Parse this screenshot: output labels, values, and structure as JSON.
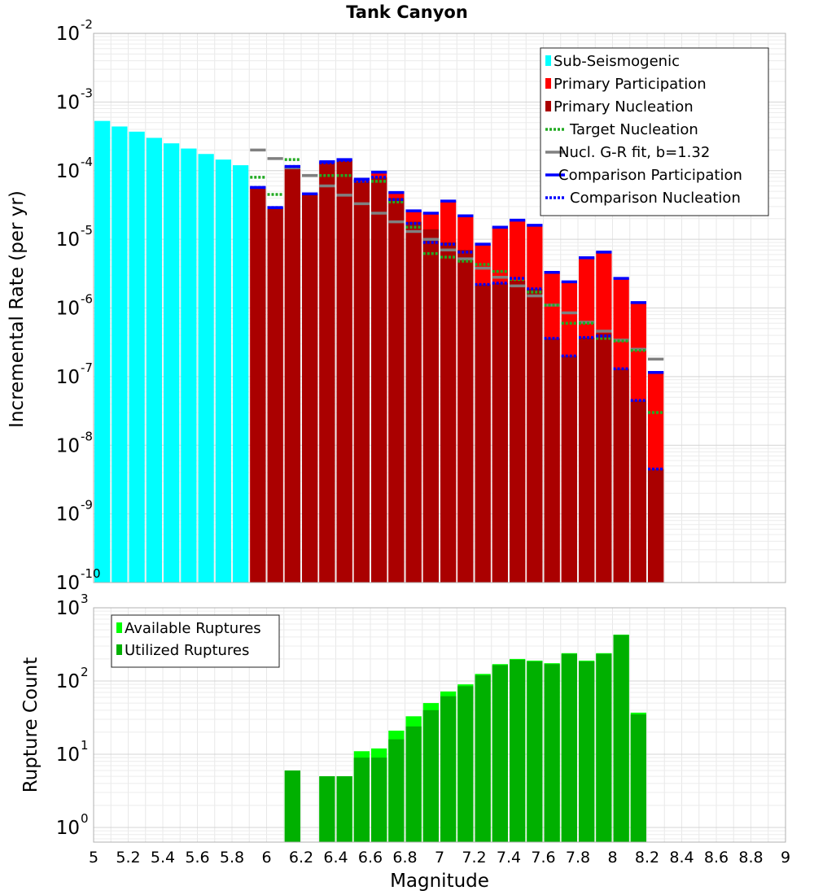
{
  "colors": {
    "sub_seismogenic": "#00FFFF",
    "primary_participation": "#FF0000",
    "primary_nucleation": "#AA0000",
    "target_nucleation": "#22AA22",
    "gr_fit": "#808080",
    "comparison": "#0000FF",
    "available": "#00FF00",
    "utilized": "#00B000"
  },
  "chart_data": [
    {
      "type": "bar",
      "title": "Tank Canyon",
      "ylabel": "Incremental Rate (per yr)",
      "xlabel": "Magnitude",
      "xlim": [
        5,
        9
      ],
      "ylim_exp": [
        -10,
        -2
      ],
      "ytick_labels": [
        {
          "base": "10",
          "exp": "-2"
        },
        {
          "base": "10",
          "exp": "-3"
        },
        {
          "base": "10",
          "exp": "-4"
        },
        {
          "base": "10",
          "exp": "-5"
        },
        {
          "base": "10",
          "exp": "-6"
        },
        {
          "base": "10",
          "exp": "-7"
        },
        {
          "base": "10",
          "exp": "-8"
        },
        {
          "base": "10",
          "exp": "-9"
        },
        {
          "base": "10",
          "exp": "-10"
        }
      ],
      "legend": [
        {
          "label": "Sub-Seismogenic",
          "style": "box",
          "color": "#00FFFF"
        },
        {
          "label": "Primary Participation",
          "style": "box",
          "color": "#FF0000"
        },
        {
          "label": "Primary Nucleation",
          "style": "box",
          "color": "#AA0000"
        },
        {
          "label": "Target Nucleation",
          "style": "dotted",
          "color": "#22AA22"
        },
        {
          "label": "Nucl. G-R fit, b=1.32",
          "style": "solid",
          "color": "#808080"
        },
        {
          "label": "Comparison Participation",
          "style": "solid",
          "color": "#0000FF"
        },
        {
          "label": "Comparison Nucleation",
          "style": "dotted",
          "color": "#0000FF"
        }
      ],
      "sub_seismogenic": {
        "x": [
          5.0,
          5.1,
          5.2,
          5.3,
          5.4,
          5.5,
          5.6,
          5.7,
          5.8
        ],
        "values": [
          0.00053,
          0.00044,
          0.00037,
          0.0003,
          0.00025,
          0.00021,
          0.000175,
          0.000145,
          0.00012
        ]
      },
      "primary": {
        "x": [
          5.9,
          6.0,
          6.1,
          6.2,
          6.3,
          6.4,
          6.5,
          6.6,
          6.7,
          6.8,
          6.9,
          7.0,
          7.1,
          7.2,
          7.3,
          7.4,
          7.5,
          7.6,
          7.7,
          7.8,
          7.9,
          8.0,
          8.1,
          8.2
        ],
        "participation": [
          5.7e-05,
          2.9e-05,
          0.000115,
          4.6e-05,
          0.000135,
          0.000145,
          7.5e-05,
          9.5e-05,
          4.8e-05,
          2.6e-05,
          2.4e-05,
          3.6e-05,
          2.2e-05,
          8.5e-06,
          1.5e-05,
          1.9e-05,
          1.6e-05,
          3.3e-06,
          2.4e-06,
          5.4e-06,
          6.5e-06,
          2.7e-06,
          1.2e-06,
          1.15e-07
        ],
        "nucleation": [
          5.7e-05,
          2.9e-05,
          0.000115,
          4.6e-05,
          0.00013,
          0.00014,
          7e-05,
          8e-05,
          4e-05,
          1.8e-05,
          1.4e-05,
          9e-06,
          7e-06,
          2.2e-06,
          2.3e-06,
          2.5e-06,
          1.9e-06,
          3.6e-07,
          2e-07,
          3.7e-07,
          4.3e-07,
          1.3e-07,
          4.5e-08,
          4.5e-09
        ],
        "target_nucleation": [
          8e-05,
          4.5e-05,
          0.000145,
          null,
          8.5e-05,
          8.5e-05,
          7e-05,
          7e-05,
          3.5e-05,
          1.5e-05,
          6.2e-06,
          5.5e-06,
          4.8e-06,
          4.3e-06,
          3.4e-06,
          2.6e-06,
          1.7e-06,
          1.1e-06,
          6e-07,
          6e-07,
          3.6e-07,
          3.3e-07,
          2.4e-07,
          3e-08
        ],
        "gr_fit": [
          0.0002,
          0.00015,
          0.00011,
          8.5e-05,
          6e-05,
          4.4e-05,
          3.3e-05,
          2.4e-05,
          1.8e-05,
          1.3e-05,
          1e-05,
          7e-06,
          5.2e-06,
          3.8e-06,
          2.8e-06,
          2.1e-06,
          1.5e-06,
          1.1e-06,
          8.5e-07,
          6.2e-07,
          4.6e-07,
          3.4e-07,
          2.5e-07,
          1.8e-07
        ],
        "comparison_participation": [
          5.7e-05,
          2.9e-05,
          0.000115,
          4.6e-05,
          0.000135,
          0.000145,
          7.5e-05,
          9.5e-05,
          4.8e-05,
          2.6e-05,
          2.4e-05,
          3.6e-05,
          2.2e-05,
          8.5e-06,
          1.5e-05,
          1.9e-05,
          1.6e-05,
          3.3e-06,
          2.4e-06,
          5.4e-06,
          6.5e-06,
          2.7e-06,
          1.2e-06,
          1.15e-07
        ],
        "comparison_nucleation": [
          5.7e-05,
          2.9e-05,
          0.000115,
          4.6e-05,
          0.00013,
          0.00014,
          7e-05,
          8e-05,
          3.8e-05,
          1.7e-05,
          9e-06,
          8.5e-06,
          6.5e-06,
          2.2e-06,
          2.3e-06,
          2.7e-06,
          1.9e-06,
          3.6e-07,
          2e-07,
          3.7e-07,
          3.9e-07,
          1.3e-07,
          4.5e-08,
          4.5e-09
        ]
      }
    },
    {
      "type": "bar",
      "ylabel": "Rupture Count",
      "xlabel": "Magnitude",
      "xlim": [
        5,
        9
      ],
      "ylim_exp": [
        0,
        3
      ],
      "ytick_labels": [
        {
          "base": "10",
          "exp": "3"
        },
        {
          "base": "10",
          "exp": "2"
        },
        {
          "base": "10",
          "exp": "1"
        },
        {
          "base": "10",
          "exp": "0"
        }
      ],
      "xtick_labels": [
        "5",
        "5.2",
        "5.4",
        "5.6",
        "5.8",
        "6",
        "6.2",
        "6.4",
        "6.6",
        "6.8",
        "7",
        "7.2",
        "7.4",
        "7.6",
        "7.8",
        "8",
        "8.2",
        "8.4",
        "8.6",
        "8.8",
        "9"
      ],
      "legend": [
        {
          "label": "Available Ruptures",
          "style": "box",
          "color": "#00FF00"
        },
        {
          "label": "Utilized Ruptures",
          "style": "box",
          "color": "#00B000"
        }
      ],
      "x": [
        6.1,
        6.3,
        6.4,
        6.5,
        6.6,
        6.7,
        6.8,
        6.9,
        7.0,
        7.1,
        7.2,
        7.3,
        7.4,
        7.5,
        7.6,
        7.7,
        7.8,
        7.9,
        8.0,
        8.1
      ],
      "available": [
        6,
        5,
        5,
        11,
        12,
        21,
        33,
        50,
        72,
        90,
        125,
        170,
        200,
        190,
        175,
        240,
        190,
        240,
        430,
        37
      ],
      "utilized": [
        6,
        5,
        5,
        9,
        9,
        16,
        24,
        40,
        62,
        85,
        120,
        165,
        195,
        185,
        170,
        235,
        185,
        235,
        425,
        35
      ]
    }
  ]
}
